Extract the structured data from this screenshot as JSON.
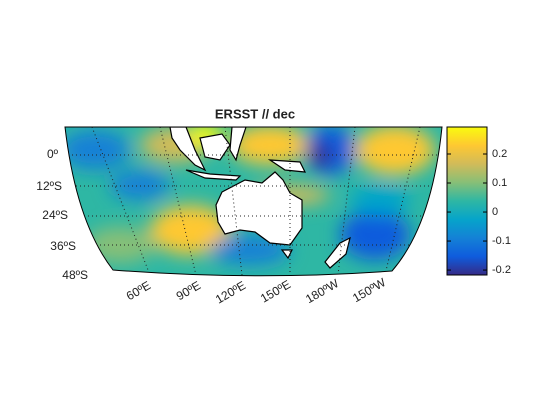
{
  "title": "ERSST // dec",
  "lat_labels": [
    "0º",
    "12ºS",
    "24ºS",
    "36ºS",
    "48ºS"
  ],
  "lon_labels": [
    "60ºE",
    "90ºE",
    "120ºE",
    "150ºE",
    "180ºW",
    "150ºW"
  ],
  "colorbar": {
    "lim": [
      -0.217,
      0.293
    ],
    "ticks": [
      -0.2,
      -0.1,
      0,
      0.1,
      0.2
    ],
    "colors": [
      "#352a87",
      "#0f5cdd",
      "#1481d6",
      "#06a4ca",
      "#2eb7a4",
      "#87bf77",
      "#d1bb59",
      "#fec832",
      "#f9fb0e"
    ]
  }
}
